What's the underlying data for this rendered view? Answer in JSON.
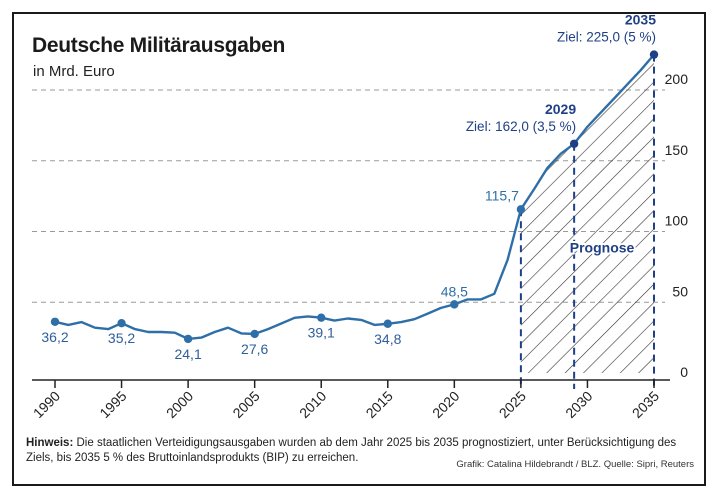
{
  "chart_data": {
    "type": "line",
    "title": "Deutsche Militärausgaben",
    "subtitle": "in Mrd. Euro",
    "x_tick_labels": [
      "1990",
      "1995",
      "2000",
      "2005",
      "2010",
      "2015",
      "2020",
      "2025",
      "2030",
      "2035"
    ],
    "y_tick_labels": [
      "0",
      "50",
      "100",
      "150",
      "200"
    ],
    "xlim": [
      1990,
      2035
    ],
    "ylim": [
      0,
      200
    ],
    "grid": "horizontal dashed",
    "series": [
      {
        "color": "#2f6fa8",
        "x": [
          1990,
          1991,
          1992,
          1993,
          1994,
          1995,
          1996,
          1997,
          1998,
          1999,
          2000,
          2001,
          2002,
          2003,
          2004,
          2005,
          2006,
          2007,
          2008,
          2009,
          2010,
          2011,
          2012,
          2013,
          2014,
          2015,
          2016,
          2017,
          2018,
          2019,
          2020,
          2021,
          2022,
          2023,
          2024,
          2025,
          2026,
          2027,
          2028,
          2029,
          2030,
          2031,
          2032,
          2033,
          2034,
          2035
        ],
        "values": [
          36.2,
          34,
          36,
          32,
          31,
          35.2,
          31,
          29,
          29,
          28.5,
          24.1,
          25,
          29,
          32,
          28,
          27.6,
          31,
          35,
          39,
          40,
          39.1,
          37,
          38.5,
          37.5,
          34,
          34.8,
          36,
          38,
          42,
          46,
          48.5,
          52,
          52,
          56,
          80,
          115.7,
          130,
          145,
          155,
          162,
          174,
          184,
          194,
          204,
          214,
          225
        ]
      }
    ],
    "data_labels": [
      {
        "x": 1990,
        "y": 36.2,
        "text": "36,2"
      },
      {
        "x": 1995,
        "y": 35.2,
        "text": "35,2"
      },
      {
        "x": 2000,
        "y": 24.1,
        "text": "24,1"
      },
      {
        "x": 2005,
        "y": 27.6,
        "text": "27,6"
      },
      {
        "x": 2010,
        "y": 39.1,
        "text": "39,1"
      },
      {
        "x": 2015,
        "y": 34.8,
        "text": "34,8"
      },
      {
        "x": 2020,
        "y": 48.5,
        "text": "48,5"
      },
      {
        "x": 2025,
        "y": 115.7,
        "text": "115,7"
      }
    ],
    "targets": [
      {
        "x": 2029,
        "y": 162.0,
        "year": "2029",
        "label": "Ziel: 162,0 (3,5 %)"
      },
      {
        "x": 2035,
        "y": 225.0,
        "year": "2035",
        "label": "Ziel: 225,0 (5 %)"
      }
    ],
    "forecast_region": {
      "from": 2025,
      "to": 2035,
      "label": "Prognose"
    }
  },
  "note": {
    "prefix": "Hinweis:",
    "text": "Die staatlichen Verteidigungsausgaben wurden ab dem Jahr 2025 bis 2035 prognostiziert, unter Berücksichtigung des Ziels, bis 2035 5 % des Bruttoinlandsprodukts (BIP) zu erreichen."
  },
  "source": "Grafik: Catalina Hildebrandt / BLZ. Quelle: Sipri, Reuters"
}
